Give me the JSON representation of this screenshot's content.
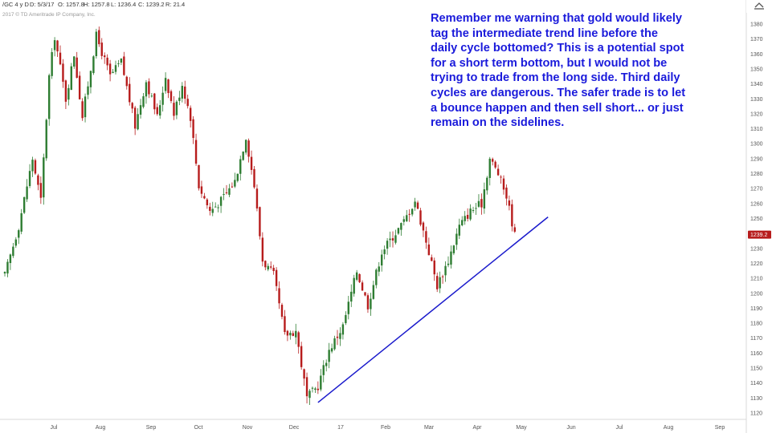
{
  "header": {
    "symbol": "/GC 4 y D",
    "date": "D: 5/3/17",
    "open": "O: 1257.8",
    "high": "H: 1257.8",
    "low": "L: 1236.4",
    "close": "C: 1239.2",
    "range": "R: 21.4",
    "copyright": "2017 © TD Ameritrade IP Company, Inc."
  },
  "annotation": {
    "text": "Remember me warning that gold would likely tag the intermediate trend line before the daily cycle bottomed? This is a potential spot for a short term bottom, but I would not be trying to trade from the long side. Third daily cycles are dangerous. The safer trade is to let a bounce happen and then sell short... or just remain on the sidelines."
  },
  "price_tag": "1239.2",
  "colors": {
    "up": "#2e7d32",
    "down": "#b71c1c",
    "trendline": "#1a1acc",
    "annotation": "#1a1adb",
    "price_tag_bg": "#b71c1c",
    "frame": "#d9d9d9"
  },
  "chart_data": {
    "type": "candlestick",
    "ylim": [
      1115,
      1395
    ],
    "yticks": [
      1120,
      1130,
      1140,
      1150,
      1160,
      1170,
      1180,
      1190,
      1200,
      1210,
      1220,
      1230,
      1240,
      1250,
      1260,
      1270,
      1280,
      1290,
      1300,
      1310,
      1320,
      1330,
      1340,
      1350,
      1360,
      1370,
      1380
    ],
    "xticks": [
      "Jul",
      "Aug",
      "Sep",
      "Oct",
      "Nov",
      "Dec",
      "17",
      "Feb",
      "Mar",
      "Apr",
      "May",
      "Jun",
      "Jul",
      "Aug",
      "Sep"
    ],
    "close_path": [
      {
        "t": 0,
        "v": 1212
      },
      {
        "t": 5,
        "v": 1245
      },
      {
        "t": 10,
        "v": 1290
      },
      {
        "t": 13,
        "v": 1262
      },
      {
        "t": 16,
        "v": 1345
      },
      {
        "t": 18,
        "v": 1372
      },
      {
        "t": 22,
        "v": 1330
      },
      {
        "t": 25,
        "v": 1360
      },
      {
        "t": 28,
        "v": 1318
      },
      {
        "t": 33,
        "v": 1372
      },
      {
        "t": 38,
        "v": 1345
      },
      {
        "t": 42,
        "v": 1355
      },
      {
        "t": 47,
        "v": 1312
      },
      {
        "t": 51,
        "v": 1342
      },
      {
        "t": 55,
        "v": 1318
      },
      {
        "t": 58,
        "v": 1345
      },
      {
        "t": 61,
        "v": 1320
      },
      {
        "t": 64,
        "v": 1340
      },
      {
        "t": 67,
        "v": 1318
      },
      {
        "t": 70,
        "v": 1272
      },
      {
        "t": 74,
        "v": 1255
      },
      {
        "t": 78,
        "v": 1262
      },
      {
        "t": 83,
        "v": 1275
      },
      {
        "t": 87,
        "v": 1305
      },
      {
        "t": 90,
        "v": 1272
      },
      {
        "t": 93,
        "v": 1222
      },
      {
        "t": 97,
        "v": 1212
      },
      {
        "t": 101,
        "v": 1172
      },
      {
        "t": 105,
        "v": 1175
      },
      {
        "t": 109,
        "v": 1130
      },
      {
        "t": 113,
        "v": 1138
      },
      {
        "t": 117,
        "v": 1162
      },
      {
        "t": 122,
        "v": 1178
      },
      {
        "t": 127,
        "v": 1215
      },
      {
        "t": 131,
        "v": 1192
      },
      {
        "t": 136,
        "v": 1228
      },
      {
        "t": 140,
        "v": 1238
      },
      {
        "t": 144,
        "v": 1248
      },
      {
        "t": 148,
        "v": 1262
      },
      {
        "t": 152,
        "v": 1235
      },
      {
        "t": 156,
        "v": 1205
      },
      {
        "t": 160,
        "v": 1222
      },
      {
        "t": 164,
        "v": 1245
      },
      {
        "t": 168,
        "v": 1255
      },
      {
        "t": 172,
        "v": 1260
      },
      {
        "t": 175,
        "v": 1290
      },
      {
        "t": 178,
        "v": 1280
      },
      {
        "t": 181,
        "v": 1265
      },
      {
        "t": 184,
        "v": 1239
      }
    ],
    "candles": 185,
    "price_tag_value": 1239.2,
    "trendline": [
      {
        "t": 113,
        "v": 1127
      },
      {
        "t": 196,
        "v": 1251
      }
    ]
  }
}
